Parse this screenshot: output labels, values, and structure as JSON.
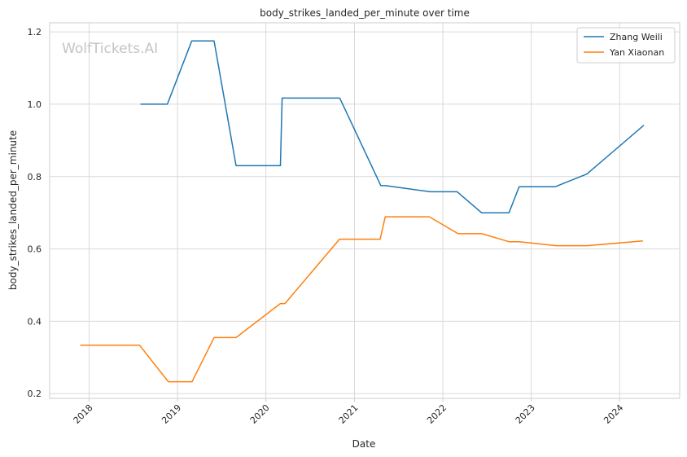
{
  "chart_data": {
    "type": "line",
    "title": "body_strikes_landed_per_minute over time",
    "xlabel": "Date",
    "ylabel": "body_strikes_landed_per_minute",
    "watermark": "WolfTickets.AI",
    "grid": true,
    "legend_position": "top-right",
    "xlim": [
      "2017-07-22",
      "2024-09-05"
    ],
    "ylim": [
      0.187,
      1.225
    ],
    "x_ticks": [
      "2018",
      "2019",
      "2020",
      "2021",
      "2022",
      "2023",
      "2024"
    ],
    "y_ticks": [
      "0.2",
      "0.4",
      "0.6",
      "0.8",
      "1.0",
      "1.2"
    ],
    "series": [
      {
        "name": "Zhang Weili",
        "color": "#1f77b4",
        "points": [
          [
            "2018-08-01",
            1.0
          ],
          [
            "2018-11-20",
            1.0
          ],
          [
            "2019-03-01",
            1.175
          ],
          [
            "2019-06-01",
            1.175
          ],
          [
            "2019-08-31",
            0.83
          ],
          [
            "2020-03-01",
            0.83
          ],
          [
            "2020-03-08",
            1.017
          ],
          [
            "2020-11-01",
            1.017
          ],
          [
            "2021-04-20",
            0.775
          ],
          [
            "2021-05-10",
            0.775
          ],
          [
            "2021-11-10",
            0.758
          ],
          [
            "2022-03-01",
            0.758
          ],
          [
            "2022-06-10",
            0.7
          ],
          [
            "2022-10-01",
            0.7
          ],
          [
            "2022-11-12",
            0.772
          ],
          [
            "2023-04-10",
            0.772
          ],
          [
            "2023-08-19",
            0.807
          ],
          [
            "2024-04-10",
            0.942
          ]
        ]
      },
      {
        "name": "Yan Xiaonan",
        "color": "#ff7f0e",
        "points": [
          [
            "2017-11-25",
            0.334
          ],
          [
            "2018-07-28",
            0.334
          ],
          [
            "2018-11-24",
            0.233
          ],
          [
            "2019-03-02",
            0.233
          ],
          [
            "2019-06-01",
            0.355
          ],
          [
            "2019-08-31",
            0.355
          ],
          [
            "2020-03-01",
            0.449
          ],
          [
            "2020-03-20",
            0.449
          ],
          [
            "2020-10-31",
            0.627
          ],
          [
            "2021-04-17",
            0.627
          ],
          [
            "2021-05-08",
            0.689
          ],
          [
            "2021-11-06",
            0.689
          ],
          [
            "2022-03-05",
            0.642
          ],
          [
            "2022-06-11",
            0.642
          ],
          [
            "2022-10-01",
            0.62
          ],
          [
            "2022-11-12",
            0.62
          ],
          [
            "2023-04-15",
            0.609
          ],
          [
            "2023-08-19",
            0.609
          ],
          [
            "2024-04-06",
            0.622
          ]
        ]
      }
    ]
  }
}
